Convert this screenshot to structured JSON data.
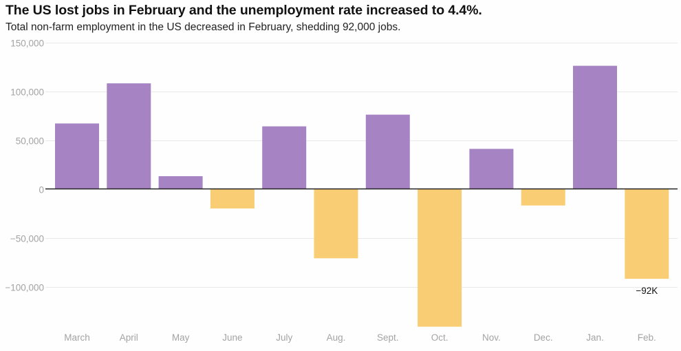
{
  "header": {
    "title": "The US lost jobs in February and the unemployment rate increased to 4.4%.",
    "subtitle": "Total non-farm employment in the US decreased in February, shedding 92,000 jobs."
  },
  "colors": {
    "positive": "#a683c3",
    "negative": "#f8cd73",
    "gridline": "#e9e9e9",
    "zero_line": "#222222",
    "tick_text": "#a3a3a3"
  },
  "chart_data": {
    "type": "bar",
    "title": "The US lost jobs in February and the unemployment rate increased to 4.4%.",
    "subtitle": "Total non-farm employment in the US decreased in February, shedding 92,000 jobs.",
    "xlabel": "",
    "ylabel": "",
    "categories": [
      "March",
      "April",
      "May",
      "June",
      "July",
      "Aug.",
      "Sept.",
      "Oct.",
      "Nov.",
      "Dec.",
      "Jan.",
      "Feb."
    ],
    "values": [
      67000,
      108000,
      13000,
      -20000,
      64000,
      -71000,
      76000,
      -141000,
      41000,
      -17000,
      126000,
      -92000
    ],
    "ylim": [
      -150000,
      150000
    ],
    "yticks": [
      150000,
      100000,
      50000,
      0,
      -50000,
      -100000
    ],
    "ytick_labels": [
      "150,000",
      "100,000",
      "50,000",
      "0",
      "−50,000",
      "−100,000"
    ],
    "grid": true,
    "legend": "none",
    "annotations": [
      {
        "category": "Feb.",
        "text": "−92K"
      }
    ]
  }
}
